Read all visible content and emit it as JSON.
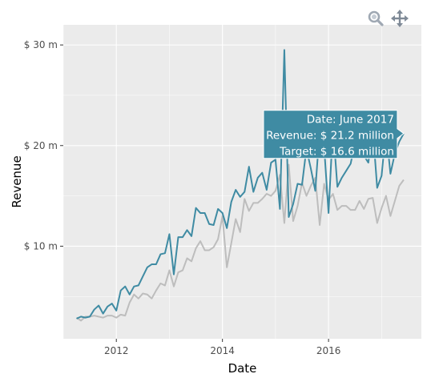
{
  "toolbar": {
    "zoom_icon": "zoom-magnifier-icon",
    "pan_icon": "pan-move-icon"
  },
  "colors": {
    "panel": "#ebebeb",
    "grid": "#ffffff",
    "revenue": "#3f8ba3",
    "target": "#bdbdbd",
    "tooltip": "#3f8ba3"
  },
  "chart_data": {
    "type": "line",
    "title": "",
    "xlabel": "Date",
    "ylabel": "Revenue",
    "x_ticks": [
      "2012",
      "2014",
      "2016"
    ],
    "y_ticks": [
      "$ 10 m",
      "$ 20 m",
      "$ 30 m"
    ],
    "xlim": [
      "2011-01",
      "2017-10"
    ],
    "ylim": [
      0.8,
      32
    ],
    "grid": true,
    "legend": "none",
    "x": [
      "2011-04",
      "2011-05",
      "2011-06",
      "2011-07",
      "2011-08",
      "2011-09",
      "2011-10",
      "2011-11",
      "2011-12",
      "2012-01",
      "2012-02",
      "2012-03",
      "2012-04",
      "2012-05",
      "2012-06",
      "2012-07",
      "2012-08",
      "2012-09",
      "2012-10",
      "2012-11",
      "2012-12",
      "2013-01",
      "2013-02",
      "2013-03",
      "2013-04",
      "2013-05",
      "2013-06",
      "2013-07",
      "2013-08",
      "2013-09",
      "2013-10",
      "2013-11",
      "2013-12",
      "2014-01",
      "2014-02",
      "2014-03",
      "2014-04",
      "2014-05",
      "2014-06",
      "2014-07",
      "2014-08",
      "2014-09",
      "2014-10",
      "2014-11",
      "2014-12",
      "2015-01",
      "2015-02",
      "2015-03",
      "2015-04",
      "2015-05",
      "2015-06",
      "2015-07",
      "2015-08",
      "2015-09",
      "2015-10",
      "2015-11",
      "2015-12",
      "2016-01",
      "2016-02",
      "2016-03",
      "2016-04",
      "2016-05",
      "2016-06",
      "2016-07",
      "2016-08",
      "2016-09",
      "2016-10",
      "2016-11",
      "2016-12",
      "2017-01",
      "2017-02",
      "2017-03",
      "2017-04",
      "2017-05",
      "2017-06"
    ],
    "series": [
      {
        "name": "Revenue",
        "values": [
          2.8,
          3.0,
          2.9,
          3.0,
          3.7,
          4.1,
          3.3,
          4.0,
          4.3,
          3.6,
          5.6,
          6.0,
          5.2,
          6.0,
          6.1,
          7.0,
          7.9,
          8.2,
          8.2,
          9.2,
          9.3,
          11.2,
          7.2,
          10.9,
          10.9,
          11.6,
          11.0,
          13.8,
          13.3,
          13.3,
          12.2,
          12.1,
          13.7,
          13.3,
          11.8,
          14.4,
          15.6,
          14.9,
          15.4,
          17.9,
          15.4,
          16.8,
          17.3,
          15.6,
          18.3,
          18.6,
          13.7,
          29.5,
          12.9,
          14.2,
          16.2,
          16.1,
          19.7,
          17.7,
          15.5,
          21.6,
          19.9,
          13.3,
          21.9,
          15.9,
          16.8,
          17.5,
          18.2,
          20.3,
          20.7,
          19.0,
          18.3,
          21.7,
          15.8,
          17.0,
          21.6,
          17.2,
          19.2,
          20.4,
          21.2
        ]
      },
      {
        "name": "Target",
        "values": [
          2.9,
          2.6,
          3.0,
          3.0,
          3.1,
          3.0,
          2.9,
          3.1,
          3.1,
          2.9,
          3.2,
          3.1,
          4.4,
          5.2,
          4.8,
          5.3,
          5.2,
          4.8,
          5.6,
          6.3,
          6.1,
          7.6,
          6.0,
          7.4,
          7.6,
          8.8,
          8.5,
          9.8,
          10.5,
          9.6,
          9.6,
          9.9,
          10.7,
          13.0,
          7.9,
          10.3,
          12.7,
          11.4,
          14.7,
          13.5,
          14.3,
          14.3,
          14.7,
          15.2,
          15.0,
          15.5,
          17.1,
          12.3,
          18.1,
          12.5,
          14.0,
          16.3,
          15.0,
          16.0,
          16.8,
          12.1,
          16.2,
          14.6,
          15.2,
          13.6,
          14.0,
          14.0,
          13.6,
          13.6,
          14.5,
          13.7,
          14.7,
          14.8,
          12.3,
          13.8,
          15.0,
          13.0,
          14.5,
          16.0,
          16.6
        ]
      }
    ],
    "tooltip": {
      "point_x": "2017-06",
      "point_y": 21.2,
      "lines": [
        "Date: June 2017",
        "Revenue: $ 21.2 million",
        "Target: $ 16.6 million"
      ]
    }
  }
}
